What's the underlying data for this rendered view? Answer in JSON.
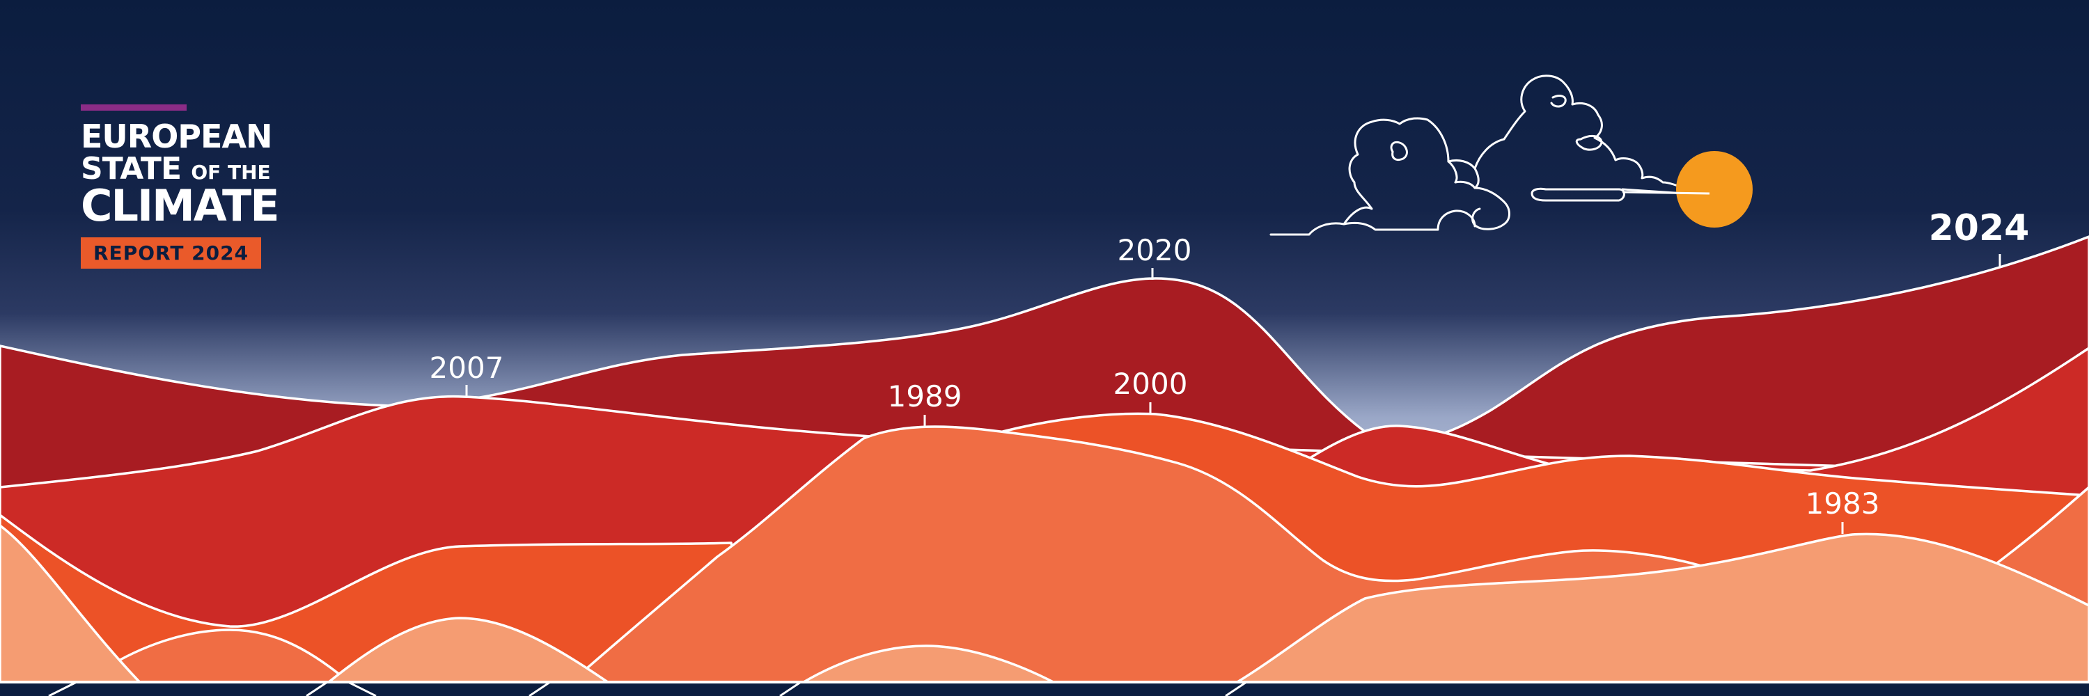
{
  "logo": {
    "line1": "EUROPEAN",
    "line2_main": "STATE",
    "line2_small": "OF THE",
    "line3": "CLIMATE",
    "badge": "REPORT 2024"
  },
  "years": {
    "y2020": "2020",
    "y2007": "2007",
    "y1989": "1989",
    "y2000": "2000",
    "y1983": "1983",
    "y2024": "2024"
  },
  "colors": {
    "sky_top": "#0b1d3f",
    "sky_mid": "#1a2a52",
    "horizon_glow": "#9aa7c7",
    "ridge_dark_red": "#a81c22",
    "ridge_red": "#cc2a26",
    "ridge_orange_red": "#ec5227",
    "ridge_orange": "#f06d44",
    "ridge_peach": "#f59c72",
    "sun": "#f59a1e",
    "outline": "#ffffff",
    "badge_bg": "#ea5a2a",
    "accent_bar": "#8b2c86"
  },
  "icons": [
    "cloud-icon",
    "sun-icon"
  ]
}
